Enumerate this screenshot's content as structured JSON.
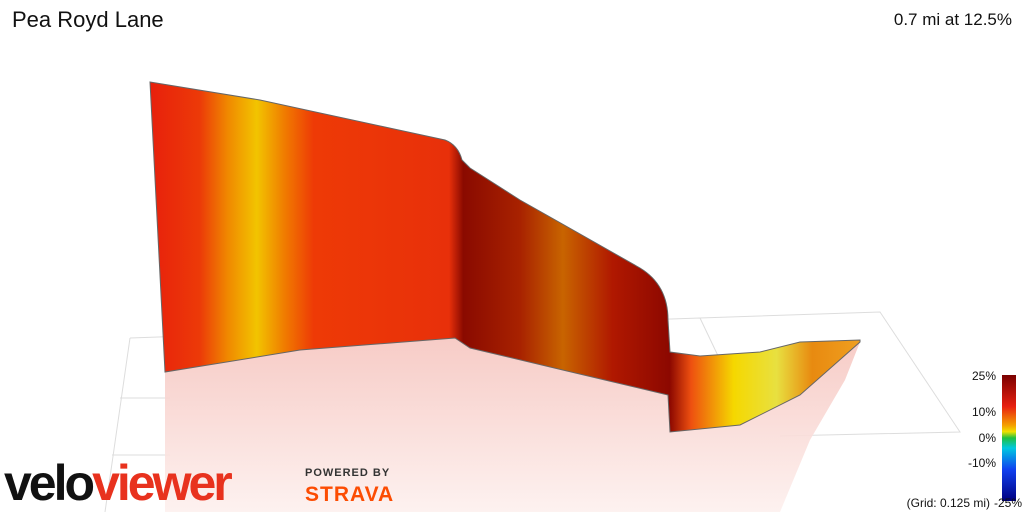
{
  "header": {
    "title": "Pea Royd Lane",
    "stat": "0.7 mi at 12.5%"
  },
  "legend": {
    "labels": [
      "25%",
      "10%",
      "0%",
      "-10%",
      "-25%"
    ],
    "grid_note": "(Grid: 0.125 mi)"
  },
  "branding": {
    "logo_dark": "velo",
    "logo_red": "viewer",
    "powered_by": "POWERED BY",
    "partner": "STRAVA"
  }
}
